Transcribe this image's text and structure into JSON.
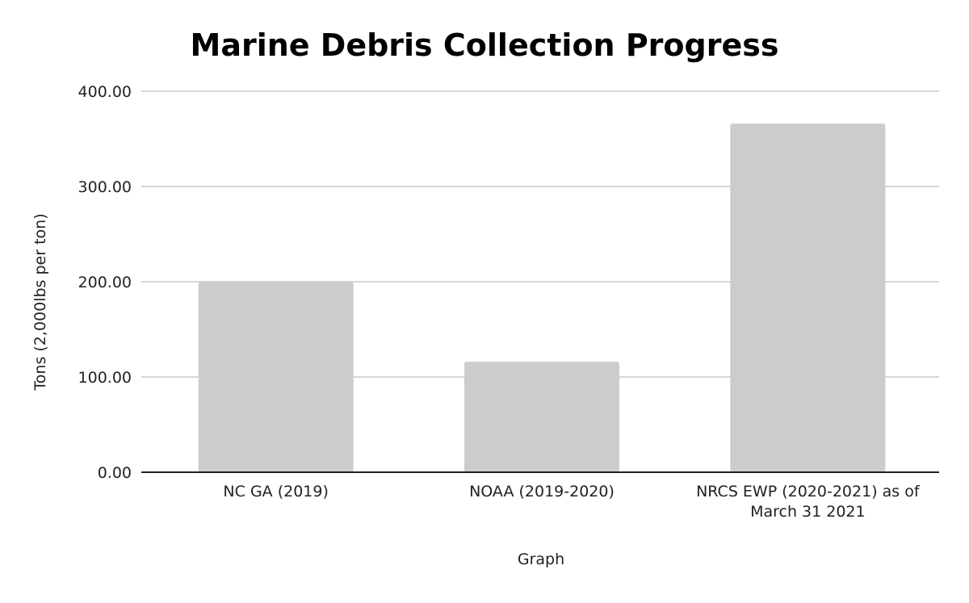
{
  "chart_data": {
    "type": "bar",
    "title": "Marine Debris Collection Progress",
    "xlabel": "Graph",
    "ylabel": "Tons (2,000lbs per ton)",
    "categories": [
      [
        "NC GA (2019)"
      ],
      [
        "NOAA (2019-2020)"
      ],
      [
        "NRCS EWP (2020-2021) as of",
        "March 31 2021"
      ]
    ],
    "values": [
      200,
      116,
      366
    ],
    "ylim": [
      0,
      400
    ],
    "yticks": [
      0,
      100,
      200,
      300,
      400
    ],
    "ytick_labels": [
      "0.00",
      "100.00",
      "200.00",
      "300.00",
      "400.00"
    ],
    "grid": true,
    "legend": "none",
    "colors": {
      "bar": "#cccccc",
      "grid": "#c8c8c8",
      "axis": "#222222",
      "title": "#000000",
      "text": "#222222"
    }
  }
}
